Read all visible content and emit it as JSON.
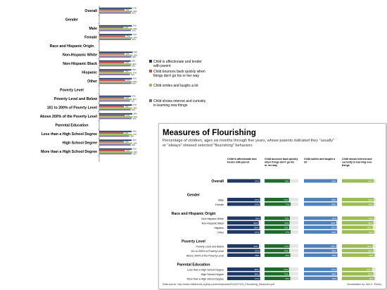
{
  "chart_data": [
    {
      "type": "bar",
      "orientation": "horizontal",
      "categories": [
        "Overall",
        "Gender",
        "Male",
        "Female",
        "Race and Hispanic Origin",
        "Non-Hispanic White",
        "Non-Hispanic Black",
        "Hispanic",
        "Other",
        "Poverty Level",
        "Poverty Level and Below",
        "101 to 200% of Poverty Level",
        "Above 200% of the Poverty Level",
        "Parental Education",
        "Less than a High School Degree",
        "High School Degree",
        "More than a High School Degree"
      ],
      "section_headers": [
        "Gender",
        "Race and Hispanic Origin",
        "Poverty Level",
        "Parental Education"
      ],
      "series": [
        {
          "name": "Child is affectionate and tender with parent",
          "color": "#1F3864",
          "values": [
            97,
            null,
            97,
            97,
            null,
            99,
            93,
            95,
            97,
            null,
            94,
            97,
            98,
            null,
            96,
            96,
            97
          ]
        },
        {
          "name": "Child bounces back quickly when things don't go his or her way",
          "color": "#C0504D",
          "values": [
            75,
            null,
            72,
            77,
            null,
            75,
            74,
            73,
            77,
            null,
            74,
            73,
            76,
            null,
            72,
            73,
            76
          ]
        },
        {
          "name": "Child smiles and laughs a lot",
          "color": "#9BBB59",
          "values": [
            98,
            null,
            98,
            98,
            null,
            99,
            96,
            97,
            98,
            null,
            96,
            98,
            99,
            null,
            97,
            98,
            99
          ]
        },
        {
          "name": "Child shows interest and curiosity in learning new things",
          "color": "#8064A2",
          "values": [
            94,
            null,
            94,
            94,
            null,
            95,
            93,
            91,
            95,
            null,
            91,
            93,
            96,
            null,
            89,
            93,
            96
          ]
        }
      ],
      "xlim": [
        0,
        100
      ],
      "legend_position": "right",
      "grid": false
    },
    {
      "type": "table",
      "title": "Measures of Flourishing",
      "subtitle": "Percentage of children, ages six months through five years, whose parents indicated they \"usually\" or \"always\" showed selected \"flourishing\" behaviors",
      "columns": [
        "Child is affectionate and tender with parent",
        "Child bounces back quickly when things don't go his or her way",
        "Child smiles and laughs a lot",
        "Child shows interest and curiosity in learning new things"
      ],
      "column_colors": [
        "#1F3864",
        "#1E6B2E",
        "#4F81BD",
        "#9BBB59"
      ],
      "groups": [
        {
          "header": "",
          "rows": [
            {
              "label": "Overall",
              "values": [
                97,
                75,
                98,
                94
              ]
            }
          ]
        },
        {
          "header": "Gender",
          "rows": [
            {
              "label": "Male",
              "values": [
                97,
                72,
                98,
                94
              ]
            },
            {
              "label": "Female",
              "values": [
                97,
                77,
                98,
                94
              ]
            }
          ]
        },
        {
          "header": "Race and Hispanic Origin",
          "rows": [
            {
              "label": "Non-Hispanic White",
              "values": [
                99,
                75,
                99,
                95
              ]
            },
            {
              "label": "Non-Hispanic Black",
              "values": [
                93,
                74,
                96,
                93
              ]
            },
            {
              "label": "Hispanic",
              "values": [
                95,
                73,
                97,
                91
              ]
            },
            {
              "label": "Other",
              "values": [
                97,
                77,
                98,
                95
              ]
            }
          ]
        },
        {
          "header": "Poverty Level",
          "rows": [
            {
              "label": "Poverty Level and Below",
              "values": [
                94,
                74,
                96,
                91
              ]
            },
            {
              "label": "101 to 200% of Poverty Level",
              "values": [
                97,
                73,
                98,
                93
              ]
            },
            {
              "label": "Above 200% of the Poverty Level",
              "values": [
                98,
                76,
                99,
                96
              ]
            }
          ]
        },
        {
          "header": "Parental Education",
          "rows": [
            {
              "label": "Less than a High School Degree",
              "values": [
                96,
                72,
                97,
                89
              ]
            },
            {
              "label": "High School Degree",
              "values": [
                96,
                73,
                98,
                93
              ]
            },
            {
              "label": "More than a High School Degree",
              "values": [
                97,
                76,
                99,
                96
              ]
            }
          ]
        }
      ],
      "data_source": "Data source: http://www.childtrends.org/wp-content/uploads/2013/07/119_Flourishing_Measures.pdf",
      "credit": "Visualization by: Ann K. Emery"
    }
  ]
}
